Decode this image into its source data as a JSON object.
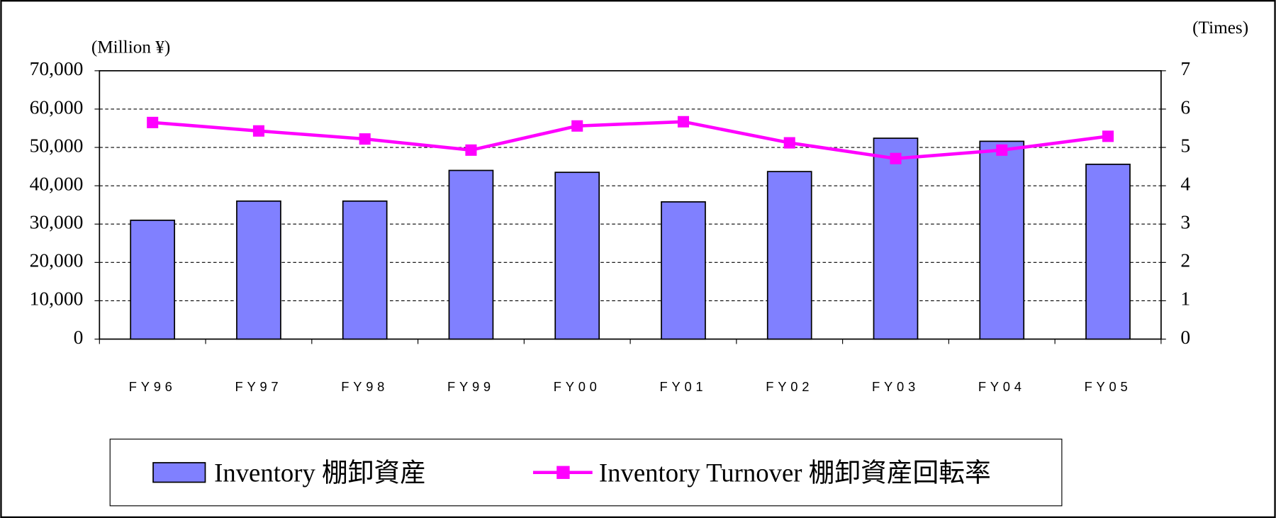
{
  "chart_data": {
    "type": "bar-line",
    "y_label": "(Million ¥)",
    "y2_label": "(Times)",
    "categories": [
      "FY96",
      "FY97",
      "FY98",
      "FY99",
      "FY00",
      "FY01",
      "FY02",
      "FY03",
      "FY04",
      "FY05"
    ],
    "series": [
      {
        "name": "Inventory 棚卸資産",
        "color": "#8080ff",
        "type": "bar",
        "values": [
          31000,
          36000,
          36000,
          44000,
          43500,
          35800,
          43700,
          52400,
          51600,
          45600
        ]
      },
      {
        "name": "Inventory Turnover 棚卸資産回転率",
        "color": "#ff00ff",
        "type": "line",
        "axis": "y2",
        "values": [
          5.65,
          5.43,
          5.22,
          4.93,
          5.56,
          5.67,
          5.12,
          4.71,
          4.93,
          5.29
        ]
      }
    ],
    "ylim": [
      0,
      70000
    ],
    "yticks": [
      0,
      {
        "value": 10000,
        "label": "10,000"
      },
      {
        "value": 20000,
        "label": "20,000"
      },
      {
        "value": 30000,
        "label": "30,000"
      },
      {
        "value": 40000,
        "label": "40,000"
      },
      {
        "value": 50000,
        "label": "50,000"
      },
      {
        "value": 60000,
        "label": "60,000"
      },
      {
        "value": 70000,
        "label": "70,000"
      }
    ],
    "y2lim": [
      0,
      7
    ],
    "y2ticks": [
      0,
      1,
      2,
      3,
      4,
      5,
      6,
      7
    ],
    "grid": true
  }
}
